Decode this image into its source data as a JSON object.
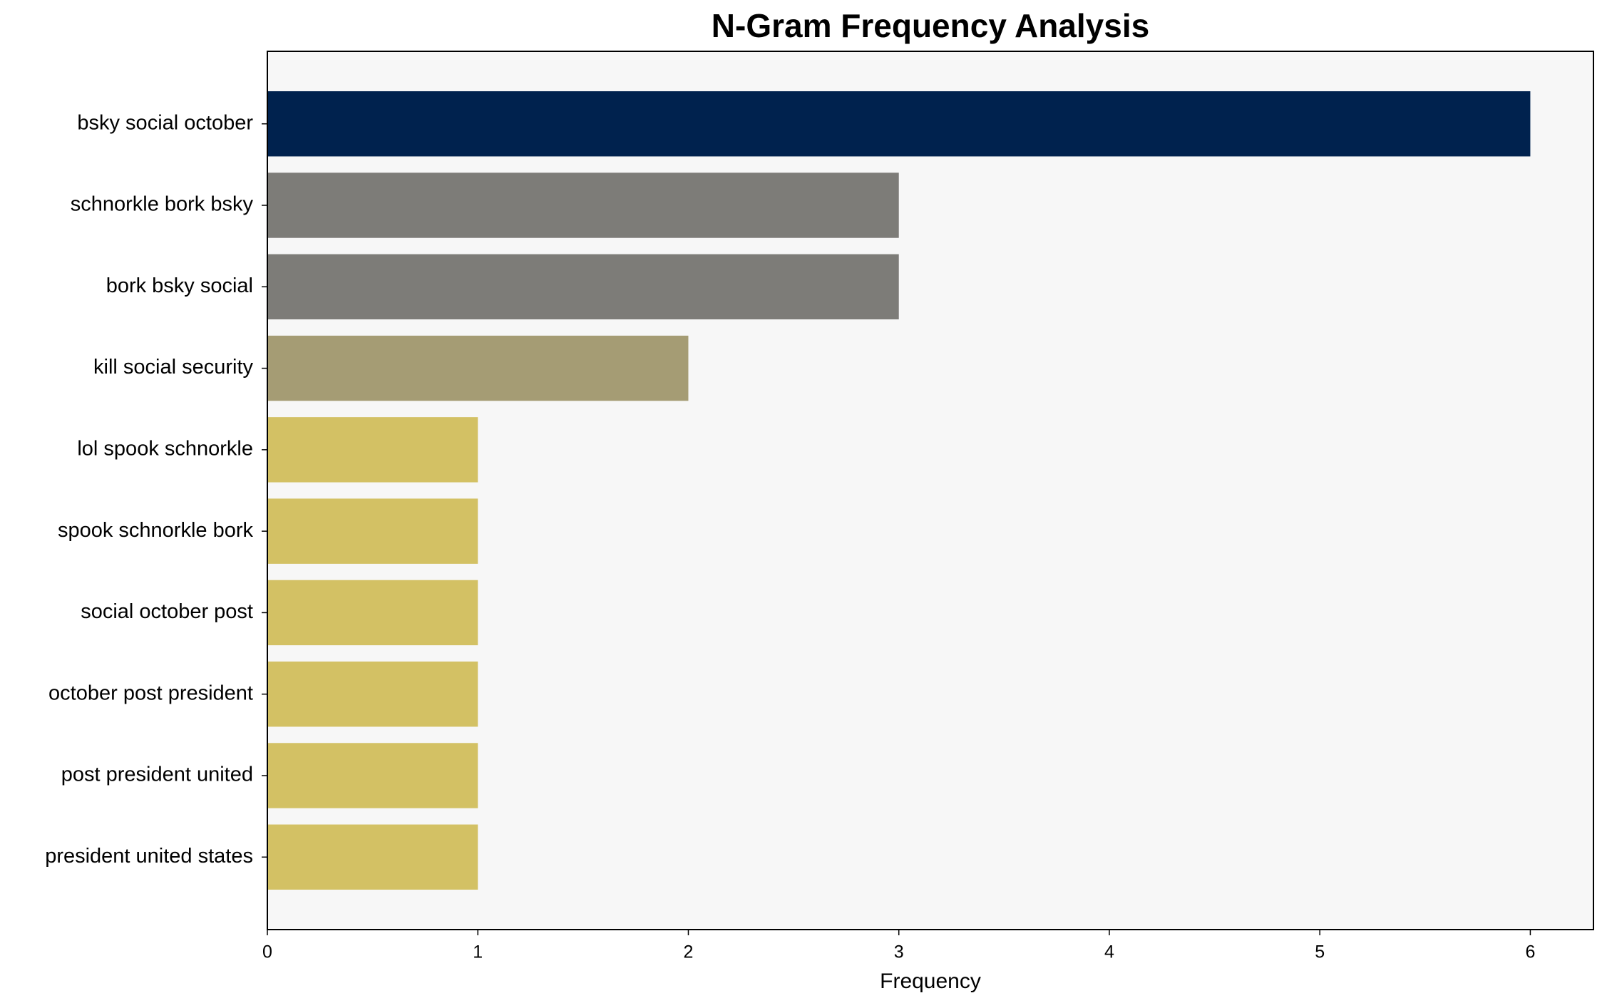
{
  "chart_data": {
    "type": "barh",
    "title": "N-Gram Frequency Analysis",
    "xlabel": "Frequency",
    "categories": [
      "bsky social october",
      "schnorkle bork bsky",
      "bork bsky social",
      "kill social security",
      "lol spook schnorkle",
      "spook schnorkle bork",
      "social october post",
      "october post president",
      "post president united",
      "president united states"
    ],
    "values": [
      6,
      3,
      3,
      2,
      1,
      1,
      1,
      1,
      1,
      1
    ],
    "colors": [
      "#00224e",
      "#7d7c78",
      "#7d7c78",
      "#a59c74",
      "#d3c164",
      "#d3c164",
      "#d3c164",
      "#d3c164",
      "#d3c164",
      "#d3c164"
    ],
    "xlim": [
      0,
      6.3
    ],
    "xticks": [
      0,
      1,
      2,
      3,
      4,
      5,
      6
    ],
    "background": "#f7f7f7"
  }
}
